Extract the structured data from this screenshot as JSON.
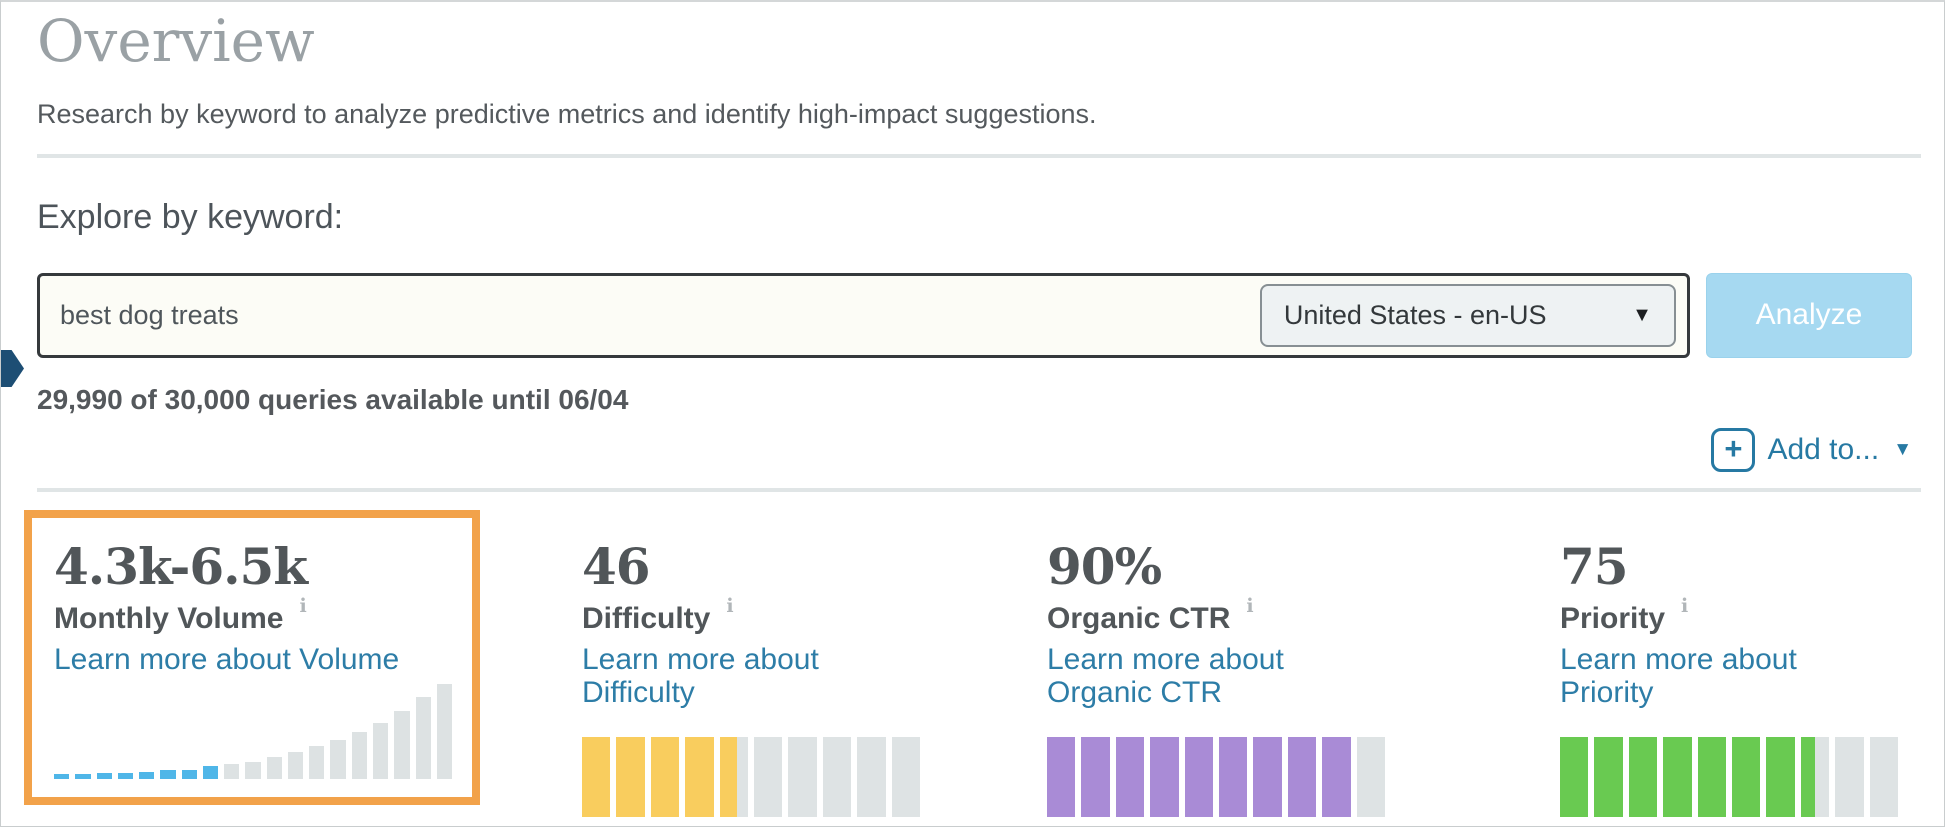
{
  "page": {
    "title": "Overview",
    "subtitle": "Research by keyword to analyze predictive metrics and identify high-impact suggestions."
  },
  "explore": {
    "heading": "Explore by keyword:",
    "keyword_value": "best dog treats",
    "locale_value": "United States - en-US",
    "locale_caret_glyph": "▼",
    "analyze_label": "Analyze",
    "quota_text": "29,990 of 30,000 queries available until 06/04",
    "add_to": {
      "label": "Add to...",
      "plus_glyph": "+",
      "caret_glyph": "▼"
    }
  },
  "metrics": [
    {
      "value": "4.3k-6.5k",
      "label": "Monthly Volume",
      "link_label": "Learn more about Volume",
      "info_glyph": "i",
      "highlighted": true
    },
    {
      "value": "46",
      "label": "Difficulty",
      "link_label": "Learn more about Difficulty",
      "info_glyph": "i",
      "highlighted": false
    },
    {
      "value": "90%",
      "label": "Organic CTR",
      "link_label": "Learn more about Organic CTR",
      "info_glyph": "i",
      "highlighted": false
    },
    {
      "value": "75",
      "label": "Priority",
      "link_label": "Learn more about Priority",
      "info_glyph": "i",
      "highlighted": false
    }
  ],
  "chart_data": [
    {
      "type": "bar",
      "metric": "Monthly Volume",
      "values": [
        5,
        5,
        6,
        6,
        7,
        9,
        9,
        13,
        15,
        18,
        23,
        28,
        34,
        41,
        49,
        59,
        71,
        86,
        100
      ],
      "highlight_count": 8,
      "highlight_color": "#4fb6e8",
      "bar_color": "#dde2e3",
      "ylim": [
        0,
        100
      ],
      "grid": false
    },
    {
      "type": "segment-gauge",
      "metric": "Difficulty",
      "value": 46,
      "max": 100,
      "segments": 10,
      "fill_color": "#f9cd5e",
      "empty_color": "#dee3e4"
    },
    {
      "type": "segment-gauge",
      "metric": "Organic CTR",
      "value": 90,
      "max": 100,
      "segments": 10,
      "fill_color": "#a98bd6",
      "empty_color": "#dee3e4"
    },
    {
      "type": "segment-gauge",
      "metric": "Priority",
      "value": 75,
      "max": 100,
      "segments": 10,
      "fill_color": "#69ca51",
      "empty_color": "#dee3e4"
    }
  ],
  "colors": {
    "accent_orange": "#f2a24a",
    "link_blue": "#2d7da7",
    "analyze_button_bg": "#a6d9f1",
    "volume_bar_blue": "#4fb6e8",
    "difficulty_yellow": "#f9cd5e",
    "ctr_purple": "#a98bd6",
    "priority_green": "#69ca51",
    "empty_gray": "#dee3e4",
    "nav_arrow_navy": "#1d4e74",
    "title_gray": "#9aa1a5",
    "text_dark": "#515659"
  }
}
